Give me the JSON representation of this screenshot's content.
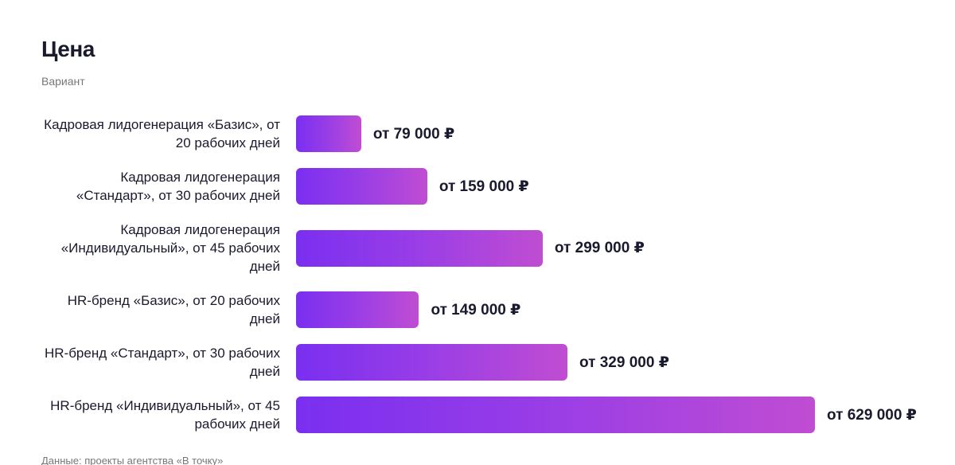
{
  "chart_data": {
    "type": "bar",
    "orientation": "horizontal",
    "title": "Цена",
    "subtitle": "Вариант",
    "categories": [
      "Кадровая лидогенерация «Базис», от 20 рабочих дней",
      "Кадровая лидогенерация «Стандарт», от 30 рабочих дней",
      "Кадровая лидогенерация «Индивидуальный», от 45 рабочих дней",
      "HR-бренд «Базис», от 20 рабочих дней",
      "HR-бренд «Стандарт», от 30 рабочих дней",
      "HR-бренд «Индивидуальный», от 45 рабочих дней"
    ],
    "values": [
      79000,
      159000,
      299000,
      149000,
      329000,
      629000
    ],
    "value_labels": [
      "от 79 000 ₽",
      "от 159 000 ₽",
      "от 299 000 ₽",
      "от 149 000 ₽",
      "от 329 000 ₽",
      "от 629 000 ₽"
    ],
    "source": "Данные: проекты агентства «В точку»"
  }
}
